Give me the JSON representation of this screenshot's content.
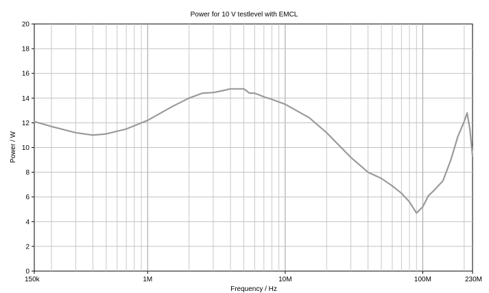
{
  "chart_data": {
    "type": "line",
    "title": "Power for 10 V testlevel with EMCL",
    "xlabel": "Frequency / Hz",
    "ylabel": "Power / W",
    "x_scale": "log",
    "xlim": [
      150000,
      230000000
    ],
    "ylim": [
      0,
      20
    ],
    "x_ticks": [
      {
        "value": 150000,
        "label": "150k"
      },
      {
        "value": 1000000,
        "label": "1M"
      },
      {
        "value": 10000000,
        "label": "10M"
      },
      {
        "value": 100000000,
        "label": "100M"
      },
      {
        "value": 230000000,
        "label": "230M"
      }
    ],
    "y_ticks": [
      {
        "value": 0,
        "label": "0"
      },
      {
        "value": 2,
        "label": "2"
      },
      {
        "value": 4,
        "label": "4"
      },
      {
        "value": 6,
        "label": "6"
      },
      {
        "value": 8,
        "label": "8"
      },
      {
        "value": 10,
        "label": "10"
      },
      {
        "value": 12,
        "label": "12"
      },
      {
        "value": 14,
        "label": "14"
      },
      {
        "value": 16,
        "label": "16"
      },
      {
        "value": 18,
        "label": "18"
      },
      {
        "value": 20,
        "label": "20"
      }
    ],
    "grid": true,
    "series_color": "#9a9a9a",
    "series": [
      {
        "x": [
          150000,
          200000,
          300000,
          400000,
          500000,
          700000,
          1000000,
          1500000,
          2000000,
          2500000,
          3000000,
          3500000,
          4000000,
          5000000,
          5500000,
          6000000,
          7000000,
          8000000,
          10000000,
          15000000,
          20000000,
          30000000,
          40000000,
          50000000,
          60000000,
          70000000,
          80000000,
          90000000,
          100000000,
          110000000,
          120000000,
          140000000,
          160000000,
          180000000,
          200000000,
          210000000,
          220000000,
          230000000
        ],
        "y": [
          12.1,
          11.7,
          11.2,
          11.0,
          11.1,
          11.5,
          12.2,
          13.3,
          14.0,
          14.4,
          14.45,
          14.6,
          14.75,
          14.75,
          14.4,
          14.4,
          14.1,
          13.9,
          13.5,
          12.4,
          11.2,
          9.2,
          8.0,
          7.5,
          6.9,
          6.3,
          5.6,
          4.7,
          5.2,
          6.1,
          6.5,
          7.3,
          9.0,
          10.9,
          12.1,
          12.8,
          11.5,
          9.3
        ]
      }
    ]
  }
}
